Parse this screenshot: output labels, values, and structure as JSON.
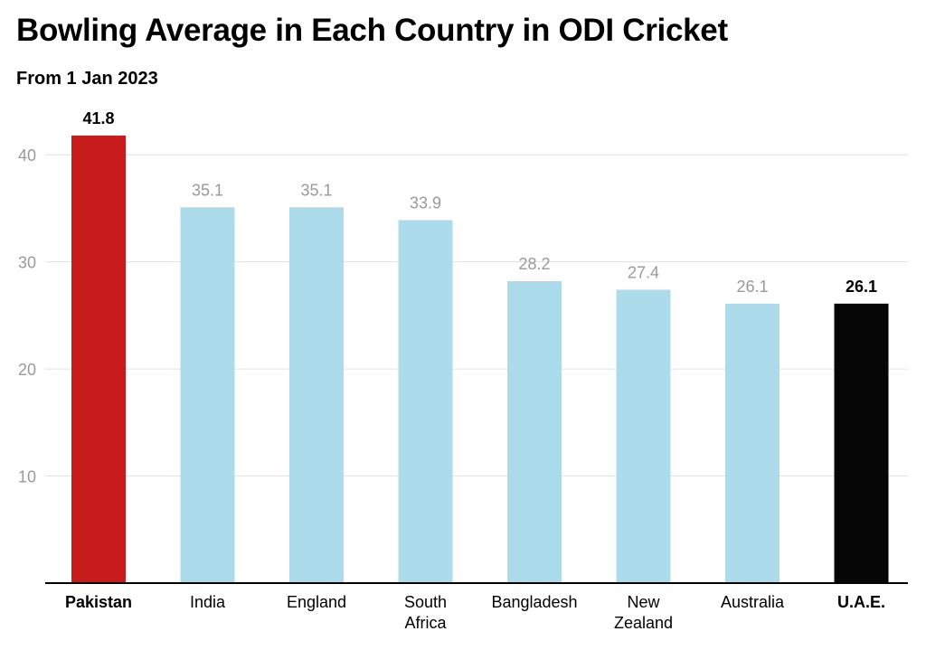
{
  "title": "Bowling Average in Each Country in ODI Cricket",
  "subtitle": "From 1 Jan 2023",
  "chart_data": {
    "type": "bar",
    "title": "Bowling Average in Each Country in ODI Cricket",
    "subtitle": "From 1 Jan 2023",
    "xlabel": "",
    "ylabel": "",
    "ylim": [
      0,
      45
    ],
    "yticks": [
      10,
      20,
      30,
      40
    ],
    "grid": true,
    "categories": [
      [
        "Pakistan"
      ],
      [
        "India"
      ],
      [
        "England"
      ],
      [
        "South",
        "Africa"
      ],
      [
        "Bangladesh"
      ],
      [
        "New",
        "Zealand"
      ],
      [
        "Australia"
      ],
      [
        "U.A.E."
      ]
    ],
    "values": [
      41.8,
      35.1,
      35.1,
      33.9,
      28.2,
      27.4,
      26.1,
      26.1
    ],
    "value_labels": [
      "41.8",
      "35.1",
      "35.1",
      "33.9",
      "28.2",
      "27.4",
      "26.1",
      "26.1"
    ],
    "highlight": [
      true,
      false,
      false,
      false,
      false,
      false,
      false,
      true
    ],
    "colors": [
      "#c81b1b",
      "#acdcec",
      "#acdcec",
      "#acdcec",
      "#acdcec",
      "#acdcec",
      "#acdcec",
      "#050505"
    ],
    "label_colors": [
      "#000000",
      "#999999",
      "#999999",
      "#999999",
      "#999999",
      "#999999",
      "#999999",
      "#000000"
    ]
  }
}
